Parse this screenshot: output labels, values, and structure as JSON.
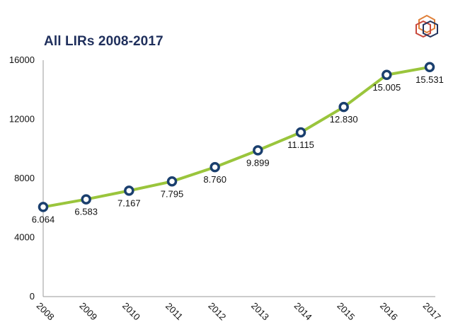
{
  "title": "All LIRs 2008-2017",
  "colors": {
    "title": "#1f2f5c",
    "line": "#9ac53c",
    "marker_stroke": "#1a3f6e",
    "marker_fill": "#ffffff",
    "axis": "#999999",
    "logo_orange": "#e0813a",
    "logo_red": "#c8483c",
    "logo_navy": "#24355e"
  },
  "logo": {
    "icon": "hexagon-cubes-logo"
  },
  "chart_data": {
    "type": "line",
    "title": "All LIRs 2008-2017",
    "xlabel": "",
    "ylabel": "",
    "categories": [
      "2008",
      "2009",
      "2010",
      "2011",
      "2012",
      "2013",
      "2014",
      "2015",
      "2016",
      "2017"
    ],
    "values": [
      6064,
      6583,
      7167,
      7795,
      8760,
      9899,
      11115,
      12830,
      15005,
      15531
    ],
    "data_labels": [
      "6.064",
      "6.583",
      "7.167",
      "7.795",
      "8.760",
      "9.899",
      "11.115",
      "12.830",
      "15.005",
      "15.531"
    ],
    "y_ticks": [
      0,
      4000,
      8000,
      12000,
      16000
    ],
    "y_tick_labels": [
      "0",
      "4000",
      "8000",
      "12000",
      "16000"
    ],
    "ylim": [
      0,
      16000
    ],
    "grid": false,
    "legend": "none"
  }
}
